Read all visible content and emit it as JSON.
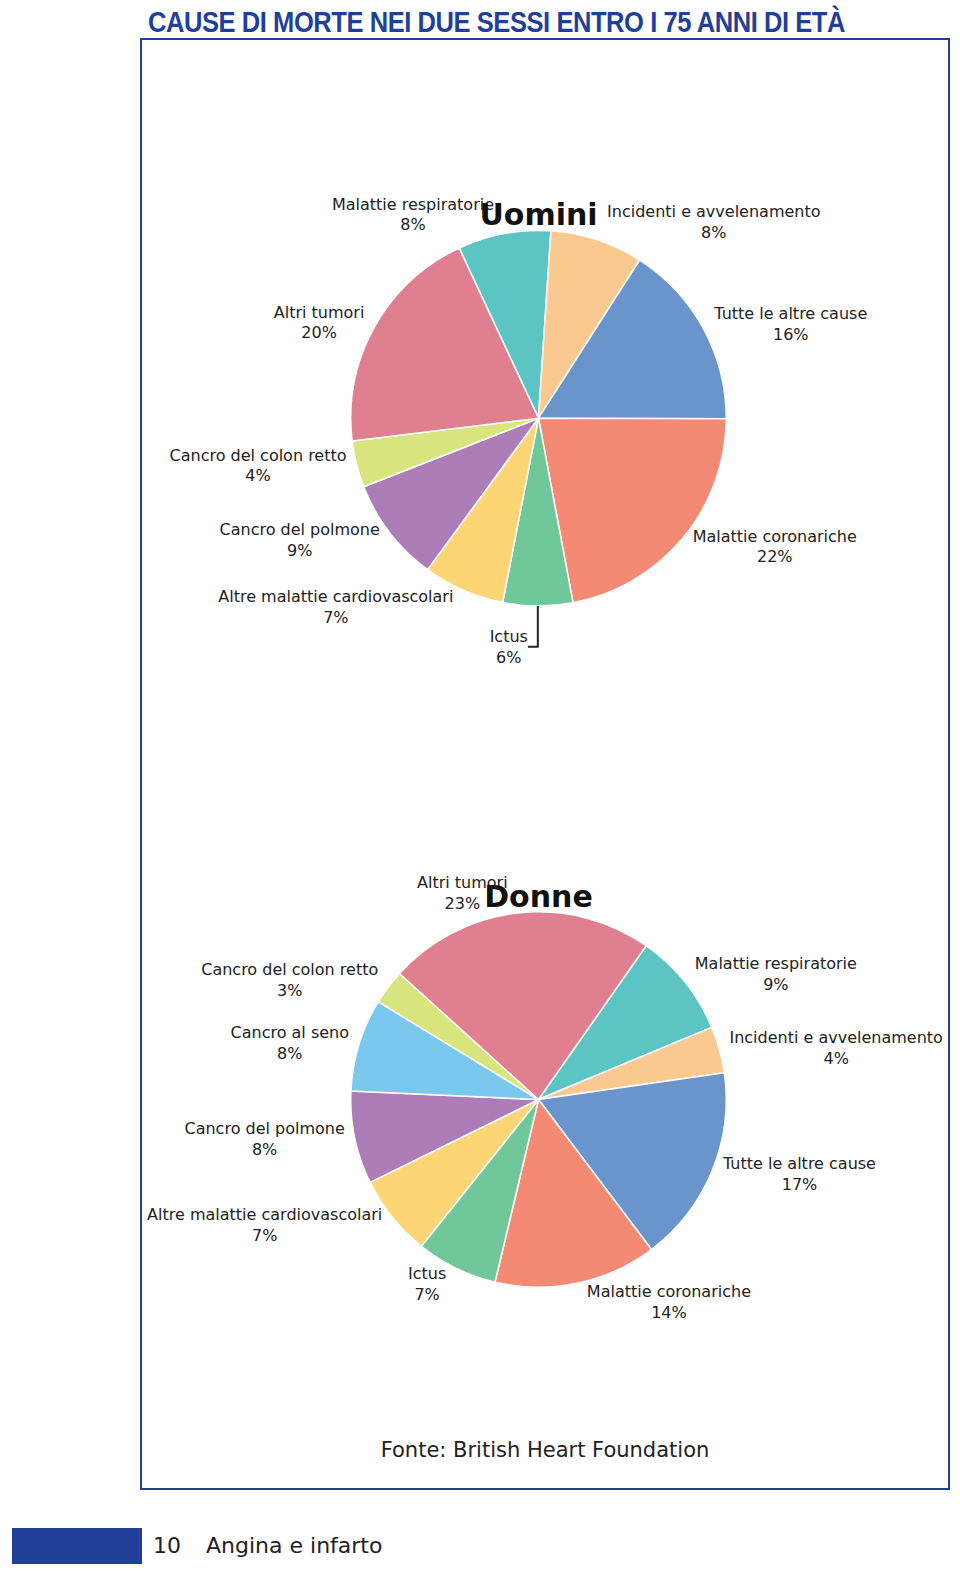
{
  "page": {
    "title": "CAUSE DI MORTE NEI DUE SESSI ENTRO I 75 ANNI DI ETÀ",
    "source": "Fonte: British Heart Foundation",
    "footer": {
      "page_number": 10,
      "text": "Angina e infarto"
    }
  },
  "chart_data": [
    {
      "type": "pie",
      "title": "Uomini",
      "categories": [
        "Malattie respiratorie",
        "Incidenti e avvelenamento",
        "Tutte le altre cause",
        "Malattie coronariche",
        "Ictus",
        "Altre malattie cardiovascolari",
        "Cancro del polmone",
        "Cancro del colon retto",
        "Altri tumori"
      ],
      "values": [
        8,
        8,
        16,
        22,
        6,
        7,
        9,
        4,
        20
      ],
      "value_labels": [
        "8%",
        "8%",
        "16%",
        "22%",
        "6%",
        "7%",
        "9%",
        "4%",
        "20%"
      ],
      "colors": [
        "#5cc5c3",
        "#f9c98f",
        "#6a95cc",
        "#f48a74",
        "#6fc79a",
        "#fdd574",
        "#ad7db8",
        "#d8e57f",
        "#e07f8f"
      ],
      "data_labels": true
    },
    {
      "type": "pie",
      "title": "Donne",
      "categories": [
        "Malattie respiratorie",
        "Incidenti e avvelenamento",
        "Tutte le altre cause",
        "Malattie coronariche",
        "Ictus",
        "Altre malattie cardiovascolari",
        "Cancro del polmone",
        "Cancro al seno",
        "Cancro del colon retto",
        "Altri tumori"
      ],
      "values": [
        9,
        4,
        17,
        14,
        7,
        7,
        8,
        8,
        3,
        23
      ],
      "value_labels": [
        "9%",
        "4%",
        "17%",
        "14%",
        "7%",
        "7%",
        "8%",
        "8%",
        "3%",
        "23%"
      ],
      "colors": [
        "#5cc5c3",
        "#f9c98f",
        "#6a95cc",
        "#f48a74",
        "#6fc79a",
        "#fdd574",
        "#ad7db8",
        "#7bc8ee",
        "#d8e57f",
        "#e07f8f"
      ],
      "data_labels": true
    }
  ]
}
